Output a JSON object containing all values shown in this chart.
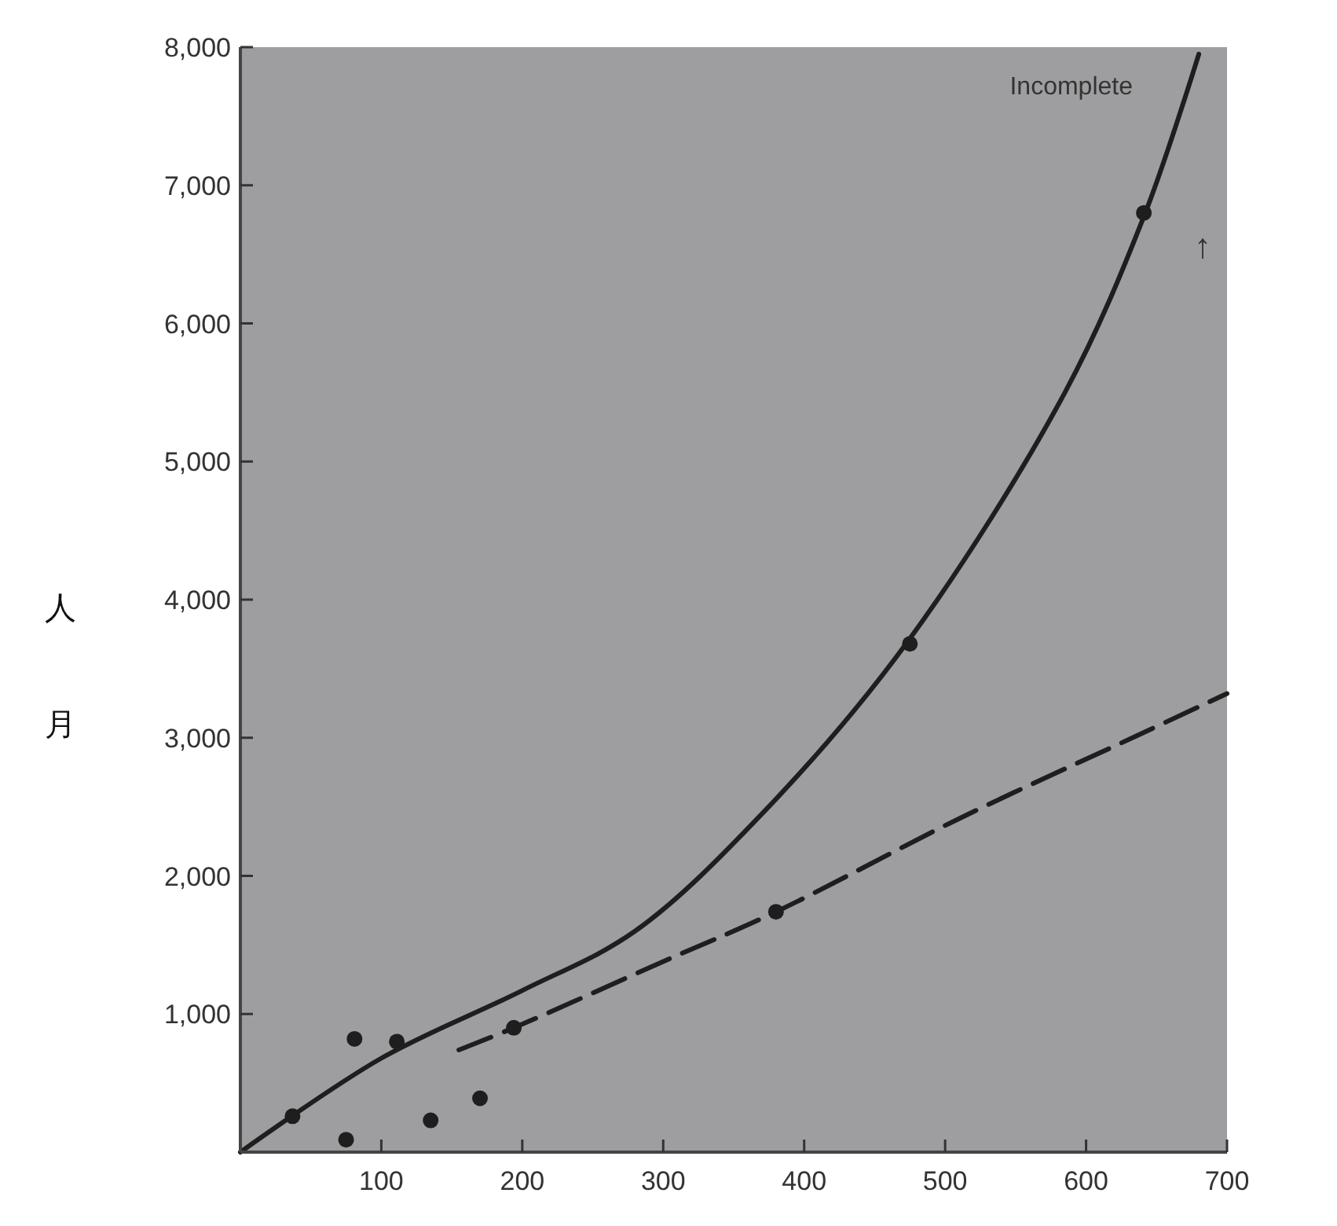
{
  "chart_data": {
    "type": "scatter",
    "ylabel": "人月",
    "xlim": [
      0,
      700
    ],
    "ylim": [
      0,
      8000
    ],
    "xticks": [
      100,
      200,
      300,
      400,
      500,
      600,
      700
    ],
    "yticks": [
      {
        "value": 1000,
        "label": "1,000"
      },
      {
        "value": 2000,
        "label": "2,000"
      },
      {
        "value": 3000,
        "label": "3,000"
      },
      {
        "value": 4000,
        "label": "4,000"
      },
      {
        "value": 5000,
        "label": "5,000"
      },
      {
        "value": 6000,
        "label": "6,000"
      },
      {
        "value": 7000,
        "label": "7,000"
      },
      {
        "value": 8000,
        "label": "8,000"
      }
    ],
    "grid": false,
    "annotations": [
      "Incomplete",
      "↑"
    ],
    "series": [
      {
        "type": "scatter",
        "color": "#1e1e1e",
        "marker": "circle",
        "x": [
          37,
          75,
          81,
          111,
          135,
          170,
          194,
          380,
          475,
          641
        ],
        "values": [
          260,
          90,
          820,
          800,
          230,
          390,
          900,
          1740,
          3680,
          6800
        ]
      },
      {
        "type": "line",
        "color": "#1e1e1e",
        "marker": "none",
        "line_style": "solid",
        "x": [
          0,
          100,
          200,
          280,
          372,
          473,
          585,
          642,
          680
        ],
        "values": [
          0,
          680,
          1170,
          1600,
          2470,
          3690,
          5500,
          6800,
          7950
        ]
      },
      {
        "type": "line",
        "color": "#1e1e1e",
        "marker": "none",
        "line_style": "dashed",
        "x": [
          155,
          194,
          300,
          380,
          511,
          635,
          700
        ],
        "values": [
          740,
          900,
          1380,
          1740,
          2420,
          3010,
          3320
        ]
      }
    ]
  }
}
